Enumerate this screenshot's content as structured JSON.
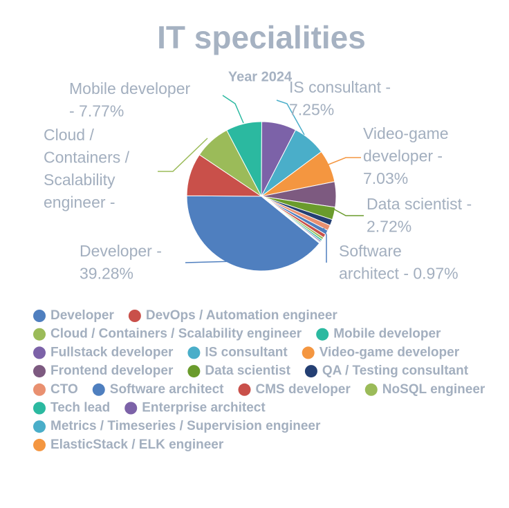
{
  "chart_data": {
    "type": "pie",
    "title": "IT specialities",
    "subtitle": "Year 2024",
    "categories": [
      "Developer",
      "DevOps / Automation engineer",
      "Cloud / Containers / Scalability engineer",
      "Mobile developer",
      "Fullstack developer",
      "IS consultant",
      "Video-game developer",
      "Frontend developer",
      "Data scientist",
      "QA / Testing consultant",
      "CTO",
      "Software architect",
      "CMS developer",
      "NoSQL engineer",
      "Tech lead",
      "Enterprise architect",
      "Metrics / Timeseries / Supervision engineer",
      "ElasticStack / ELK engineer"
    ],
    "values": [
      39.28,
      9.3,
      7.9,
      7.77,
      7.5,
      7.25,
      7.03,
      5.5,
      2.72,
      1.3,
      1.2,
      0.97,
      0.8,
      0.5,
      0.4,
      0.3,
      0.2,
      0.1
    ],
    "value_labels": [
      [
        "Developer -",
        "39.28%"
      ],
      null,
      [
        "Cloud /",
        "Containers /",
        "Scalability",
        "engineer -"
      ],
      [
        "Mobile developer",
        "- 7.77%"
      ],
      null,
      [
        "IS consultant -",
        "7.25%"
      ],
      [
        "Video-game",
        "developer -",
        "7.03%"
      ],
      null,
      [
        "Data scientist -",
        "2.72%"
      ],
      null,
      null,
      [
        "Software",
        "architect - 0.97%"
      ],
      null,
      null,
      null,
      null,
      null,
      null
    ],
    "colors": [
      "#4f7fbf",
      "#c9504a",
      "#9bbb59",
      "#2bb9a0",
      "#7c62a8",
      "#4aaec9",
      "#f49640",
      "#7d5a80",
      "#6a9b2c",
      "#243f73",
      "#e99070",
      "#4f7fbf",
      "#c9504a",
      "#9bbb59",
      "#2bb9a0",
      "#7c62a8",
      "#4aaec9",
      "#f49640"
    ],
    "legend": true
  }
}
